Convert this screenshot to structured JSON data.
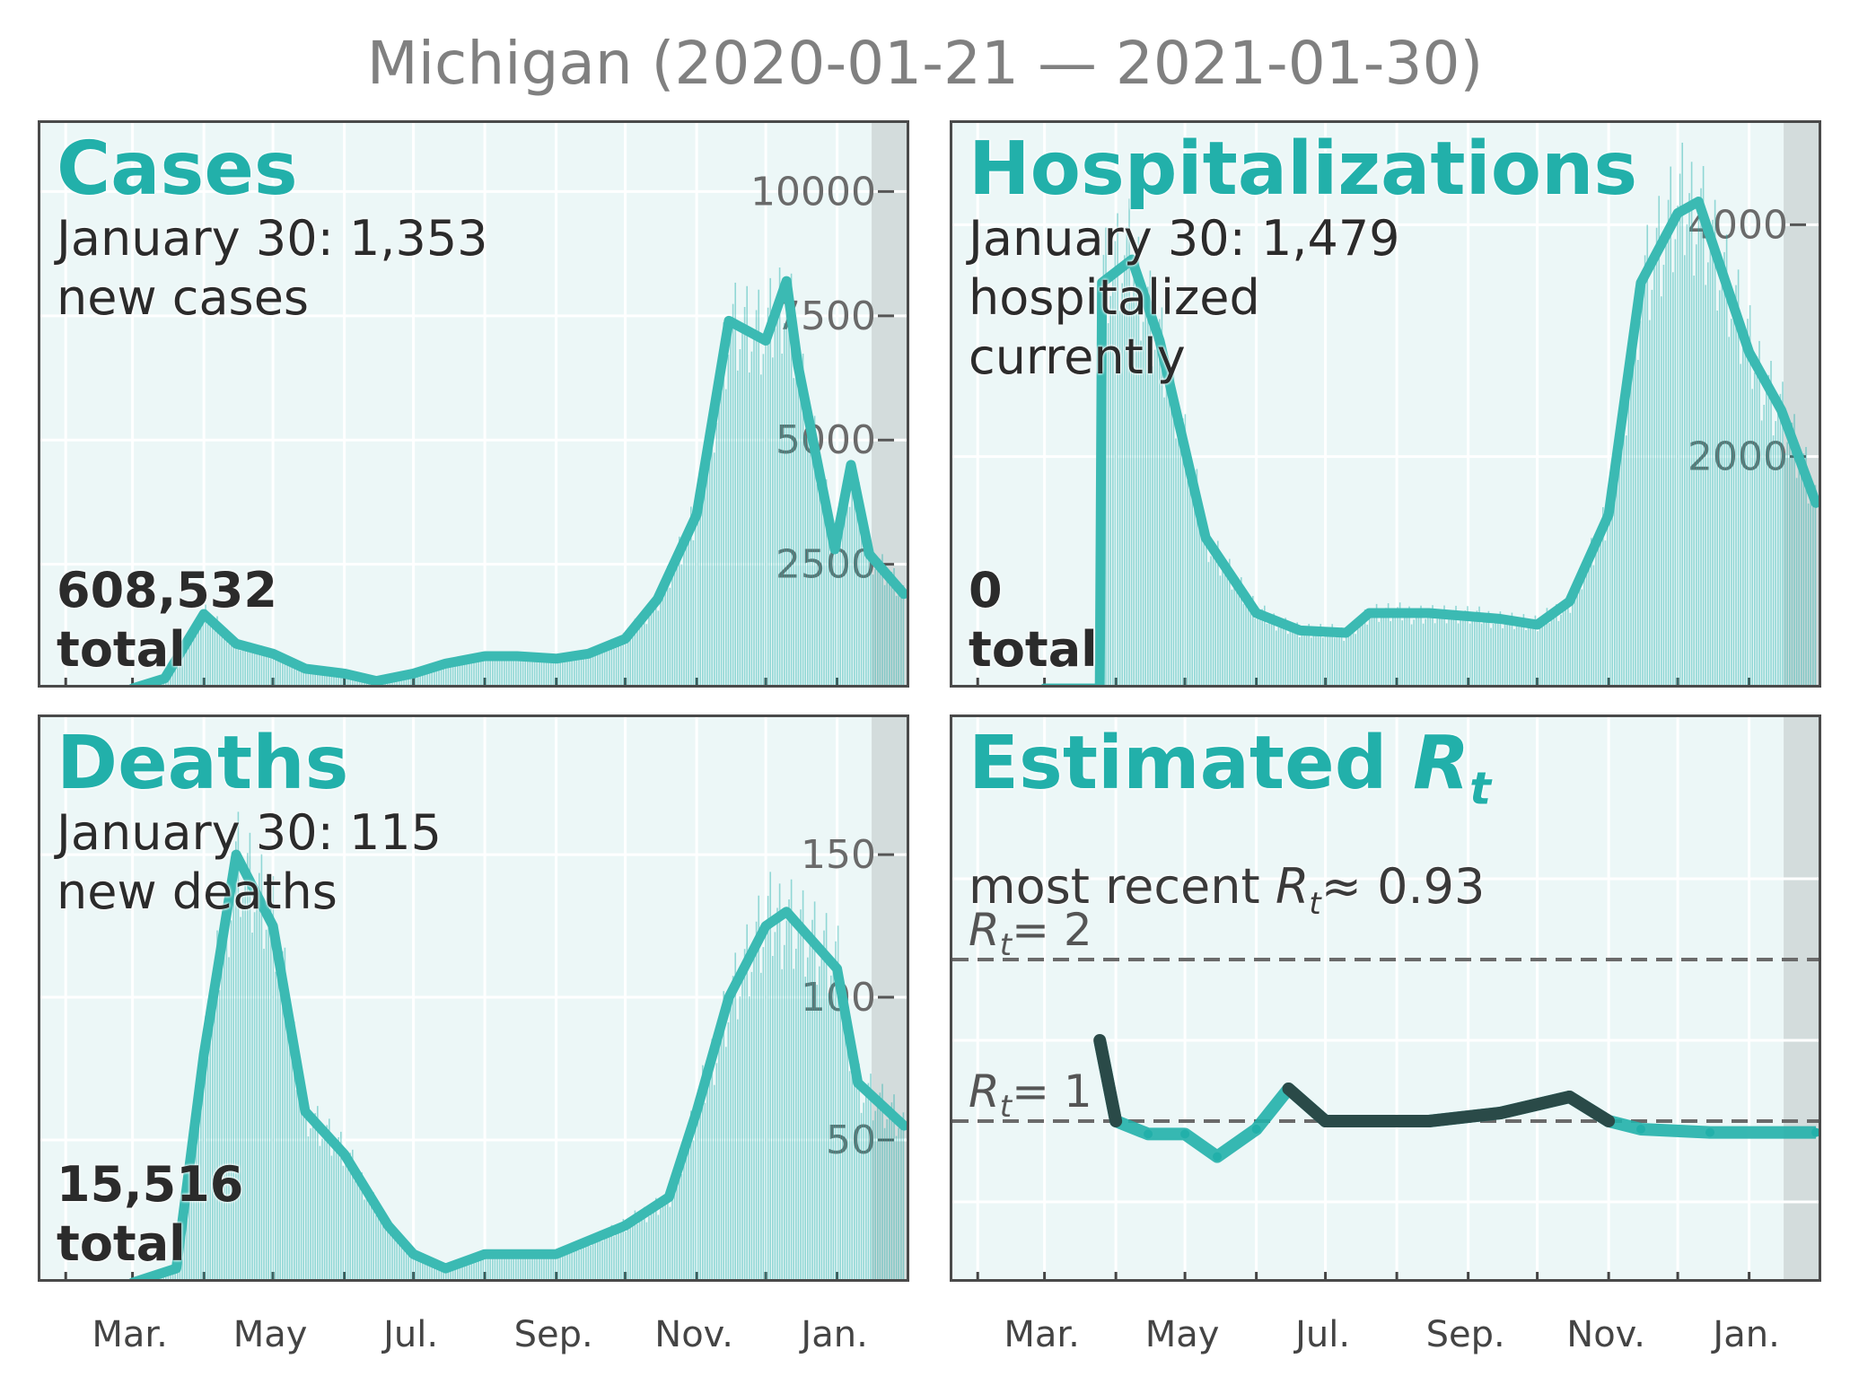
{
  "title": "Michigan (2020-01-21 — 2021-01-30)",
  "colors": {
    "accent": "#22b0aa",
    "background": "#ecf7f7",
    "dark_series": "#2a4a48",
    "shade": "#d3dcdc"
  },
  "x_tick_labels": [
    "Mar.",
    "May",
    "Jul.",
    "Sep.",
    "Nov.",
    "Jan."
  ],
  "panels": {
    "cases": {
      "heading": "Cases",
      "subtitle": "January 30: 1,353\nnew cases",
      "total": "608,532\ntotal"
    },
    "hospitalizations": {
      "heading": "Hospitalizations",
      "subtitle": "January 30: 1,479\nhospitalized\ncurrently",
      "total": "0\ntotal"
    },
    "deaths": {
      "heading": "Deaths",
      "subtitle": "January 30: 115\nnew deaths",
      "total": "15,516\ntotal"
    },
    "rt": {
      "heading": "Estimated ",
      "heading_symbol": "R",
      "heading_sub": "t",
      "subtitle_prefix": "most recent ",
      "subtitle_symbol": "R",
      "subtitle_sub": "t",
      "subtitle_suffix": "≈ 0.93",
      "line2_label": "= 2",
      "line1_label": "= 1",
      "symbol": "R",
      "symbol_sub": "t"
    }
  },
  "chart_data": [
    {
      "type": "line",
      "panel": "cases",
      "title": "Cases",
      "x": [
        "2020-03-01",
        "2020-03-15",
        "2020-04-01",
        "2020-04-15",
        "2020-05-01",
        "2020-05-15",
        "2020-06-01",
        "2020-06-15",
        "2020-07-01",
        "2020-07-15",
        "2020-08-01",
        "2020-08-15",
        "2020-09-01",
        "2020-09-15",
        "2020-10-01",
        "2020-10-15",
        "2020-11-01",
        "2020-11-15",
        "2020-12-01",
        "2020-12-10",
        "2020-12-15",
        "2020-12-31",
        "2021-01-07",
        "2021-01-15",
        "2021-01-30"
      ],
      "series": [
        {
          "values": [
            0,
            200,
            1500,
            900,
            700,
            400,
            300,
            150,
            300,
            500,
            650,
            650,
            600,
            700,
            1000,
            1800,
            3500,
            7400,
            7000,
            8200,
            6500,
            2800,
            4500,
            2700,
            1900
          ]
        }
      ],
      "yticks": [
        2500,
        5000,
        7500,
        10000
      ],
      "ylim": [
        0,
        11200
      ]
    },
    {
      "type": "line",
      "panel": "hospitalizations",
      "title": "Hospitalizations",
      "x": [
        "2020-03-01",
        "2020-03-25",
        "2020-03-26",
        "2020-04-08",
        "2020-04-20",
        "2020-05-10",
        "2020-06-01",
        "2020-06-20",
        "2020-07-10",
        "2020-07-20",
        "2020-08-15",
        "2020-09-15",
        "2020-10-01",
        "2020-10-15",
        "2020-11-01",
        "2020-11-15",
        "2020-12-01",
        "2020-12-10",
        "2021-01-01",
        "2021-01-15",
        "2021-01-30"
      ],
      "series": [
        {
          "values": [
            0,
            0,
            3500,
            3700,
            3000,
            1300,
            650,
            500,
            480,
            650,
            650,
            600,
            550,
            750,
            1500,
            3500,
            4100,
            4200,
            2900,
            2400,
            1600
          ]
        }
      ],
      "yticks": [
        2000,
        4000
      ],
      "ylim": [
        0,
        4800
      ]
    },
    {
      "type": "line",
      "panel": "deaths",
      "title": "Deaths",
      "x": [
        "2020-03-01",
        "2020-03-20",
        "2020-04-01",
        "2020-04-15",
        "2020-05-01",
        "2020-05-15",
        "2020-06-01",
        "2020-06-20",
        "2020-07-01",
        "2020-07-15",
        "2020-08-01",
        "2020-09-01",
        "2020-10-01",
        "2020-10-20",
        "2020-11-01",
        "2020-11-15",
        "2020-12-01",
        "2020-12-10",
        "2021-01-01",
        "2021-01-10",
        "2021-01-30"
      ],
      "series": [
        {
          "values": [
            0,
            5,
            80,
            150,
            125,
            60,
            45,
            20,
            10,
            5,
            10,
            10,
            20,
            30,
            60,
            100,
            125,
            130,
            110,
            70,
            55
          ]
        }
      ],
      "yticks": [
        50,
        100,
        150
      ],
      "ylim": [
        0,
        195
      ]
    },
    {
      "type": "line",
      "panel": "rt",
      "title": "Estimated Rt",
      "x": [
        "2020-03-25",
        "2020-04-01",
        "2020-04-15",
        "2020-05-01",
        "2020-05-15",
        "2020-06-01",
        "2020-06-15",
        "2020-07-01",
        "2020-07-15",
        "2020-08-15",
        "2020-09-15",
        "2020-10-15",
        "2020-11-01",
        "2020-11-15",
        "2020-12-15",
        "2021-01-30"
      ],
      "series": [
        {
          "values": [
            1.5,
            1.0,
            0.92,
            0.92,
            0.78,
            0.95,
            1.2,
            1.0,
            1.0,
            1.0,
            1.05,
            1.15,
            1.0,
            0.95,
            0.93,
            0.93
          ]
        }
      ],
      "reference_lines": [
        1,
        2
      ],
      "latest": 0.93
    }
  ]
}
